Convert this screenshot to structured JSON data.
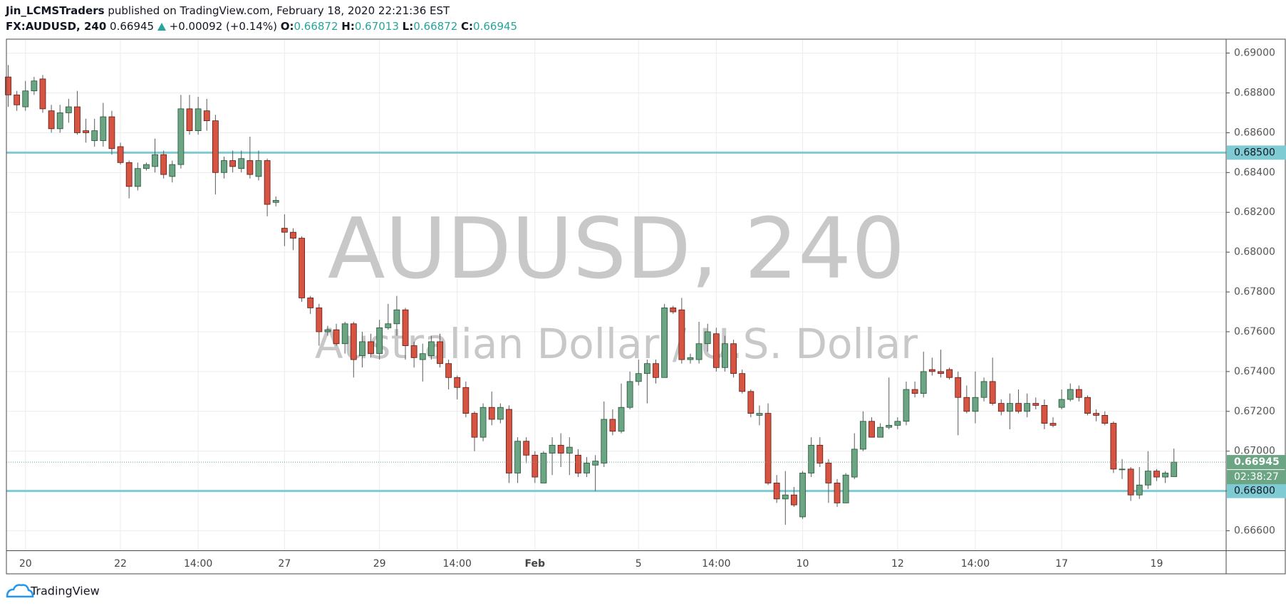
{
  "chart_data": {
    "type": "candlestick",
    "author": "Jin_LCMSTraders",
    "title": "published on TradingView.com, February 18, 2020 22:21:36 EST",
    "symbol": "FX:AUDUSD, 240",
    "change": "+0.00092 (+0.14%)",
    "ohlc_labels": [
      "O:",
      "H:",
      "L:",
      "C:"
    ],
    "watermark": "AUDUSD, 240",
    "watermark_sub": "Australian Dollar / U.S. Dollar",
    "brand": "TradingView",
    "countdown": "02:38:27",
    "up_color": "#6ba583",
    "down_color": "#d75442",
    "hline_color": "#7ecbd4",
    "grid": true,
    "categories": [
      null,
      null,
      "20",
      null,
      null,
      null,
      null,
      null,
      null,
      null,
      null,
      null,
      null,
      "22",
      null,
      null,
      null,
      null,
      null,
      null,
      null,
      null,
      "14:00",
      null,
      null,
      null,
      null,
      null,
      null,
      null,
      null,
      null,
      "27",
      null,
      null,
      null,
      null,
      null,
      null,
      null,
      null,
      null,
      null,
      "29",
      null,
      null,
      null,
      null,
      null,
      null,
      null,
      null,
      "14:00",
      null,
      null,
      null,
      null,
      null,
      null,
      null,
      null,
      "Feb",
      null,
      null,
      null,
      null,
      null,
      null,
      null,
      null,
      null,
      null,
      null,
      "5",
      null,
      null,
      null,
      null,
      null,
      null,
      null,
      null,
      "14:00",
      null,
      null,
      null,
      null,
      null,
      null,
      null,
      null,
      null,
      "10",
      null,
      null,
      null,
      null,
      null,
      null,
      null,
      null,
      null,
      null,
      "12",
      null,
      null,
      null,
      null,
      null,
      null,
      null,
      null,
      "14:00",
      null,
      null,
      null,
      null,
      null,
      null,
      null,
      null,
      null,
      "17",
      null,
      null,
      null,
      null,
      null,
      null,
      null,
      null,
      null,
      null,
      "19",
      null,
      null
    ],
    "open": [
      0.6888,
      0.6879,
      0.6873,
      0.6881,
      0.6887,
      0.6871,
      0.6862,
      0.687,
      0.6873,
      0.6861,
      0.6856,
      0.6856,
      0.6868,
      0.6853,
      0.6845,
      0.6833,
      0.6842,
      0.6843,
      0.6849,
      0.6838,
      0.6844,
      0.6872,
      0.6861,
      0.6871,
      0.6866,
      0.684,
      0.6846,
      0.6842,
      0.6846,
      0.6838,
      0.6846,
      0.6825,
      0.6812,
      0.681,
      0.6807,
      0.6777,
      0.6772,
      0.676,
      0.6761,
      0.6754,
      0.6764,
      0.6748,
      0.6755,
      0.6749,
      0.6762,
      0.6764,
      0.6771,
      0.6753,
      0.6746,
      0.6748,
      0.6755,
      0.6744,
      0.6737,
      0.6732,
      0.6719,
      0.6707,
      0.6722,
      0.6716,
      0.6721,
      0.6689,
      0.6705,
      0.6698,
      0.6684,
      0.6699,
      0.6703,
      0.6699,
      0.6698,
      0.6689,
      0.6693,
      0.6694,
      0.6716,
      0.671,
      0.6722,
      0.6735,
      0.6739,
      0.6744,
      0.6737,
      0.6772,
      0.6771,
      0.6746,
      0.6746,
      0.6754,
      0.6759,
      0.6742,
      0.6754,
      0.6739,
      0.673,
      0.6718,
      0.6719,
      0.6684,
      0.6676,
      0.6678,
      0.6667,
      0.6689,
      0.6703,
      0.6694,
      0.6684,
      0.6674,
      0.6687,
      0.6701,
      0.6715,
      0.6707,
      0.6712,
      0.6713,
      0.6715,
      0.6731,
      0.6729,
      0.6741,
      0.674,
      0.6741,
      0.6737,
      0.6727,
      0.672,
      0.6727,
      0.6735,
      0.6724,
      0.672,
      0.6724,
      0.672,
      0.6724,
      0.6723,
      0.6714,
      0.6722,
      0.6726,
      0.6731,
      0.6727,
      0.6719,
      0.6718,
      0.6714,
      0.6691,
      0.6691,
      0.6678,
      0.6683,
      0.669,
      0.6687,
      0.66872
    ],
    "high": [
      0.6894,
      0.6881,
      0.6886,
      0.6888,
      0.6889,
      0.6874,
      0.6874,
      0.6877,
      0.6881,
      0.6867,
      0.6867,
      0.6875,
      0.6871,
      0.6855,
      0.6846,
      0.6845,
      0.6845,
      0.6857,
      0.6851,
      0.6846,
      0.6879,
      0.6879,
      0.6878,
      0.6877,
      0.6869,
      0.6848,
      0.6851,
      0.6851,
      0.6858,
      0.6851,
      0.6847,
      0.6828,
      0.6819,
      0.6812,
      0.6808,
      0.6778,
      0.6774,
      0.6763,
      0.6764,
      0.6765,
      0.6765,
      0.676,
      0.6759,
      0.6766,
      0.6774,
      0.6778,
      0.6772,
      0.6755,
      0.6754,
      0.6758,
      0.6759,
      0.6746,
      0.6738,
      0.6735,
      0.672,
      0.6724,
      0.673,
      0.6724,
      0.6723,
      0.6707,
      0.6707,
      0.67,
      0.67,
      0.6707,
      0.6709,
      0.6707,
      0.6701,
      0.6697,
      0.6698,
      0.6725,
      0.6721,
      0.6734,
      0.674,
      0.6746,
      0.6746,
      0.6746,
      0.6774,
      0.6773,
      0.6777,
      0.6749,
      0.6765,
      0.6764,
      0.6762,
      0.6758,
      0.6756,
      0.6741,
      0.6731,
      0.6723,
      0.6724,
      0.6688,
      0.669,
      0.6682,
      0.669,
      0.6707,
      0.6707,
      0.6696,
      0.6686,
      0.6689,
      0.6709,
      0.672,
      0.6717,
      0.6714,
      0.6737,
      0.6717,
      0.6735,
      0.6735,
      0.675,
      0.6747,
      0.6751,
      0.6742,
      0.674,
      0.6733,
      0.674,
      0.6737,
      0.6747,
      0.6726,
      0.6729,
      0.6731,
      0.6729,
      0.6727,
      0.6726,
      0.6717,
      0.6731,
      0.6734,
      0.6733,
      0.6728,
      0.6721,
      0.672,
      0.6715,
      0.6696,
      0.6692,
      0.6692,
      0.67,
      0.6691,
      0.669,
      0.67013
    ],
    "low": [
      0.6873,
      0.6871,
      0.6871,
      0.6879,
      0.687,
      0.686,
      0.686,
      0.6865,
      0.6859,
      0.6855,
      0.6853,
      0.6853,
      0.6849,
      0.6844,
      0.6827,
      0.6831,
      0.6841,
      0.684,
      0.6837,
      0.6835,
      0.6842,
      0.6859,
      0.6859,
      0.6861,
      0.6829,
      0.6837,
      0.684,
      0.684,
      0.6837,
      0.6836,
      0.6818,
      0.6823,
      0.6803,
      0.6801,
      0.6775,
      0.6769,
      0.6753,
      0.6758,
      0.6753,
      0.6749,
      0.6737,
      0.6742,
      0.6747,
      0.6746,
      0.6761,
      0.6758,
      0.6746,
      0.6742,
      0.6735,
      0.6746,
      0.6742,
      0.6731,
      0.6726,
      0.6717,
      0.67,
      0.6705,
      0.6713,
      0.6714,
      0.6684,
      0.6684,
      0.6694,
      0.6684,
      0.6684,
      0.6688,
      0.6692,
      0.6688,
      0.6687,
      0.6687,
      0.668,
      0.6692,
      0.6708,
      0.6709,
      0.6721,
      0.6733,
      0.6724,
      0.6734,
      0.6737,
      0.6769,
      0.6744,
      0.6744,
      0.6744,
      0.675,
      0.674,
      0.674,
      0.6737,
      0.6729,
      0.6717,
      0.6713,
      0.6683,
      0.6674,
      0.6663,
      0.6672,
      0.6666,
      0.6687,
      0.6692,
      0.6674,
      0.6672,
      0.6674,
      0.6686,
      0.67,
      0.6707,
      0.6707,
      0.6711,
      0.6711,
      0.6713,
      0.6727,
      0.6727,
      0.6738,
      0.6737,
      0.6736,
      0.6708,
      0.6719,
      0.6714,
      0.6725,
      0.6723,
      0.6718,
      0.6711,
      0.6719,
      0.6717,
      0.6721,
      0.6711,
      0.6712,
      0.6721,
      0.6725,
      0.6725,
      0.6718,
      0.6715,
      0.6713,
      0.6689,
      0.6686,
      0.6675,
      0.6676,
      0.6681,
      0.6685,
      0.6684,
      0.66872
    ],
    "close": [
      0.6879,
      0.6874,
      0.6881,
      0.6886,
      0.6872,
      0.6862,
      0.687,
      0.6873,
      0.686,
      0.686,
      0.6861,
      0.6868,
      0.6852,
      0.6845,
      0.6833,
      0.6842,
      0.6844,
      0.6849,
      0.6839,
      0.6844,
      0.6872,
      0.6861,
      0.6872,
      0.6866,
      0.684,
      0.6846,
      0.6843,
      0.6847,
      0.6839,
      0.6846,
      0.6824,
      0.6826,
      0.681,
      0.6807,
      0.6777,
      0.6772,
      0.676,
      0.6761,
      0.6754,
      0.6764,
      0.6746,
      0.6755,
      0.6749,
      0.6762,
      0.6764,
      0.6771,
      0.6753,
      0.6747,
      0.6749,
      0.6755,
      0.6744,
      0.6737,
      0.6732,
      0.6719,
      0.6707,
      0.6722,
      0.6716,
      0.6722,
      0.6689,
      0.6705,
      0.6698,
      0.6687,
      0.6699,
      0.6703,
      0.6699,
      0.6702,
      0.6689,
      0.6694,
      0.6695,
      0.6716,
      0.671,
      0.6722,
      0.6735,
      0.6739,
      0.6744,
      0.6737,
      0.6772,
      0.677,
      0.6746,
      0.6747,
      0.6754,
      0.676,
      0.6742,
      0.6754,
      0.6739,
      0.673,
      0.6719,
      0.6719,
      0.6684,
      0.6676,
      0.6678,
      0.6673,
      0.6689,
      0.6703,
      0.6694,
      0.6684,
      0.6674,
      0.6688,
      0.6701,
      0.6715,
      0.6707,
      0.6712,
      0.6713,
      0.6715,
      0.6731,
      0.6729,
      0.674,
      0.674,
      0.6739,
      0.6737,
      0.6727,
      0.672,
      0.6727,
      0.6735,
      0.6724,
      0.672,
      0.6724,
      0.672,
      0.6724,
      0.6723,
      0.6714,
      0.6713,
      0.6726,
      0.6731,
      0.6727,
      0.6719,
      0.6718,
      0.6714,
      0.6691,
      0.6691,
      0.6678,
      0.6683,
      0.669,
      0.6687,
      0.6689,
      0.66945
    ],
    "ylim": [
      0.665,
      0.6907
    ],
    "yticks": [
      {
        "value": 0.69,
        "label": "0.69000"
      },
      {
        "value": 0.688,
        "label": "0.68800"
      },
      {
        "value": 0.686,
        "label": "0.68600"
      },
      {
        "value": 0.684,
        "label": "0.68400"
      },
      {
        "value": 0.682,
        "label": "0.68200"
      },
      {
        "value": 0.68,
        "label": "0.68000"
      },
      {
        "value": 0.678,
        "label": "0.67800"
      },
      {
        "value": 0.676,
        "label": "0.67600"
      },
      {
        "value": 0.674,
        "label": "0.67400"
      },
      {
        "value": 0.672,
        "label": "0.67200"
      },
      {
        "value": 0.67,
        "label": "0.67000"
      },
      {
        "value": 0.668,
        "label": "0.66800"
      },
      {
        "value": 0.666,
        "label": "0.66600"
      }
    ],
    "hlines": [
      {
        "value": 0.685,
        "label": "0.68500"
      },
      {
        "value": 0.668,
        "label": "0.66800"
      }
    ]
  }
}
